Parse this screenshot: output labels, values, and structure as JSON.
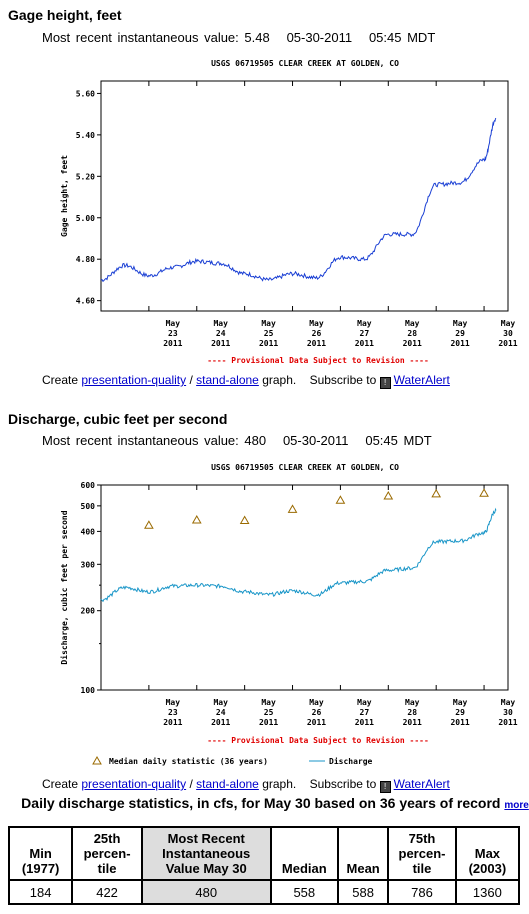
{
  "gage": {
    "section_title": "Gage height, feet",
    "recent_label": "Most recent instantaneous value:",
    "recent_value": "5.48",
    "recent_date": "05-30-2011",
    "recent_time": "05:45 MDT"
  },
  "discharge": {
    "section_title": "Discharge, cubic feet per second",
    "recent_label": "Most recent instantaneous value:",
    "recent_value": "480",
    "recent_date": "05-30-2011",
    "recent_time": "05:45 MDT"
  },
  "links": {
    "create": "Create",
    "presentation": "presentation-quality",
    "slash": "/",
    "standalone": "stand-alone",
    "graph": "graph.",
    "subscribe": "Subscribe to",
    "waterwalert": "WaterAlert"
  },
  "colors": {
    "series": "#1a3fd4",
    "discharge_series": "#1a96c8",
    "median": "#9a6a00",
    "provisional": "#e00000"
  },
  "chart_data": [
    {
      "type": "line",
      "title": "USGS 06719505 CLEAR CREEK AT GOLDEN, CO",
      "ylabel": "Gage height, feet",
      "ylim": [
        4.55,
        5.66
      ],
      "yticks": [
        "4.60",
        "4.80",
        "5.00",
        "5.20",
        "5.40",
        "5.60"
      ],
      "ytick_values": [
        4.6,
        4.8,
        5.0,
        5.2,
        5.4,
        5.6
      ],
      "xticks": [
        {
          "m": "May",
          "d": "23",
          "y": "2011"
        },
        {
          "m": "May",
          "d": "24",
          "y": "2011"
        },
        {
          "m": "May",
          "d": "25",
          "y": "2011"
        },
        {
          "m": "May",
          "d": "26",
          "y": "2011"
        },
        {
          "m": "May",
          "d": "27",
          "y": "2011"
        },
        {
          "m": "May",
          "d": "28",
          "y": "2011"
        },
        {
          "m": "May",
          "d": "29",
          "y": "2011"
        },
        {
          "m": "May",
          "d": "30",
          "y": "2011"
        }
      ],
      "xlim": [
        "2011-05-22T00:00",
        "2011-05-30T12:00"
      ],
      "footnote": "---- Provisional Data Subject to Revision ----",
      "series": [
        {
          "x": [
            "2011-05-22T00:00",
            "2011-05-22T12:00",
            "2011-05-23T00:00",
            "2011-05-23T12:00",
            "2011-05-24T00:00",
            "2011-05-24T12:00",
            "2011-05-25T00:00",
            "2011-05-25T12:00",
            "2011-05-26T00:00",
            "2011-05-26T12:00",
            "2011-05-27T00:00",
            "2011-05-27T12:00",
            "2011-05-28T00:00",
            "2011-05-28T12:00",
            "2011-05-29T00:00",
            "2011-05-29T12:00",
            "2011-05-30T00:00",
            "2011-05-30T06:00"
          ],
          "y": [
            4.7,
            4.77,
            4.72,
            4.76,
            4.79,
            4.78,
            4.73,
            4.7,
            4.73,
            4.71,
            4.81,
            4.8,
            4.92,
            4.92,
            5.16,
            5.17,
            5.28,
            5.48
          ]
        }
      ]
    },
    {
      "type": "line",
      "title": "USGS 06719505 CLEAR CREEK AT GOLDEN, CO",
      "ylabel": "Discharge, cubic feet per second",
      "yscale": "log",
      "ylim": [
        100,
        600
      ],
      "yticks": [
        "100",
        "200",
        "300",
        "400",
        "500",
        "600"
      ],
      "ytick_values": [
        100,
        200,
        300,
        400,
        500,
        600
      ],
      "xticks": [
        {
          "m": "May",
          "d": "23",
          "y": "2011"
        },
        {
          "m": "May",
          "d": "24",
          "y": "2011"
        },
        {
          "m": "May",
          "d": "25",
          "y": "2011"
        },
        {
          "m": "May",
          "d": "26",
          "y": "2011"
        },
        {
          "m": "May",
          "d": "27",
          "y": "2011"
        },
        {
          "m": "May",
          "d": "28",
          "y": "2011"
        },
        {
          "m": "May",
          "d": "29",
          "y": "2011"
        },
        {
          "m": "May",
          "d": "30",
          "y": "2011"
        }
      ],
      "xlim": [
        "2011-05-22T00:00",
        "2011-05-30T12:00"
      ],
      "footnote": "---- Provisional Data Subject to Revision ----",
      "legend": [
        "Median daily statistic (36 years)",
        "Discharge"
      ],
      "series": [
        {
          "name": "Discharge",
          "x": [
            "2011-05-22T00:00",
            "2011-05-22T12:00",
            "2011-05-23T00:00",
            "2011-05-23T12:00",
            "2011-05-24T00:00",
            "2011-05-24T12:00",
            "2011-05-25T00:00",
            "2011-05-25T12:00",
            "2011-05-26T00:00",
            "2011-05-26T12:00",
            "2011-05-27T00:00",
            "2011-05-27T12:00",
            "2011-05-28T00:00",
            "2011-05-28T12:00",
            "2011-05-29T00:00",
            "2011-05-29T12:00",
            "2011-05-30T00:00",
            "2011-05-30T06:00"
          ],
          "y": [
            220,
            245,
            236,
            248,
            250,
            248,
            236,
            230,
            238,
            230,
            255,
            258,
            285,
            290,
            365,
            368,
            395,
            480
          ]
        },
        {
          "name": "Median daily statistic (36 years)",
          "x": [
            "2011-05-23T00:00",
            "2011-05-24T00:00",
            "2011-05-25T00:00",
            "2011-05-26T00:00",
            "2011-05-27T00:00",
            "2011-05-28T00:00",
            "2011-05-29T00:00",
            "2011-05-30T00:00"
          ],
          "y": [
            422,
            442,
            440,
            485,
            525,
            545,
            555,
            558
          ]
        }
      ]
    }
  ],
  "stats": {
    "title": "Daily discharge statistics, in cfs, for May 30 based on 36 years of record",
    "more": "more",
    "headers": [
      "Min (1977)",
      "25th percen-tile",
      "Most Recent Instantaneous Value May 30",
      "Median",
      "Mean",
      "75th percen-tile",
      "Max (2003)"
    ],
    "values": [
      "184",
      "422",
      "480",
      "558",
      "588",
      "786",
      "1360"
    ]
  }
}
